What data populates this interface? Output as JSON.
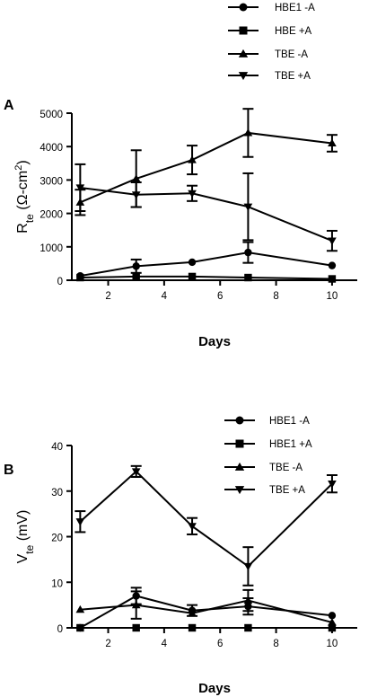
{
  "chart_data": [
    {
      "type": "line",
      "panel": "A",
      "legend_position": "top",
      "x_ticks": [
        2,
        4,
        6,
        8,
        10
      ],
      "y_ticks": [
        0,
        1000,
        2000,
        3000,
        4000,
        5000
      ],
      "xlim": [
        0.7,
        10.9
      ],
      "ylim": [
        0,
        5000
      ],
      "xlabel": "Days",
      "ylabel": {
        "main": "R",
        "sub": "te",
        "paren_open": " (",
        "omega": "Ω",
        "rest": "-cm",
        "sup": "2",
        "paren_close": ")"
      },
      "series": [
        {
          "name": "HBE1 -A",
          "marker": "circle",
          "x": [
            1,
            3,
            5,
            7,
            10
          ],
          "y": [
            130,
            420,
            540,
            830,
            440
          ],
          "err": [
            0,
            200,
            0,
            310,
            0
          ]
        },
        {
          "name": "HBE +A",
          "marker": "square",
          "x": [
            1,
            3,
            5,
            7,
            10
          ],
          "y": [
            80,
            110,
            110,
            80,
            40
          ],
          "err": [
            0,
            0,
            0,
            0,
            0
          ]
        },
        {
          "name": "TBE -A",
          "marker": "triangle-up",
          "x": [
            1,
            3,
            5,
            7,
            10
          ],
          "y": [
            2330,
            3040,
            3600,
            4410,
            4100
          ],
          "err": [
            380,
            850,
            430,
            720,
            250
          ]
        },
        {
          "name": "TBE +A",
          "marker": "triangle-down",
          "x": [
            1,
            3,
            5,
            7,
            10
          ],
          "y": [
            2770,
            2560,
            2600,
            2200,
            1180
          ],
          "err": [
            700,
            370,
            230,
            1000,
            300
          ]
        }
      ]
    },
    {
      "type": "line",
      "panel": "B",
      "legend_position": "top-right",
      "x_ticks": [
        2,
        4,
        6,
        8,
        10
      ],
      "y_ticks": [
        0,
        10,
        20,
        30,
        40
      ],
      "xlim": [
        0.7,
        10.9
      ],
      "ylim": [
        0,
        40
      ],
      "xlabel": "Days",
      "ylabel": {
        "main": "V",
        "sub": "te",
        "paren_open": " (mV)",
        "omega": "",
        "rest": "",
        "sup": "",
        "paren_close": ""
      },
      "series": [
        {
          "name": "HBE1 -A",
          "marker": "circle",
          "x": [
            1,
            3,
            5,
            7,
            10
          ],
          "y": [
            0,
            7,
            3.8,
            4.7,
            2.7
          ],
          "err": [
            0,
            1.8,
            1.2,
            1.8,
            0
          ]
        },
        {
          "name": "HBE1 +A",
          "marker": "square",
          "x": [
            1,
            3,
            5,
            7,
            10
          ],
          "y": [
            0,
            0,
            0,
            0,
            0
          ],
          "err": [
            0,
            0,
            0,
            0,
            0
          ]
        },
        {
          "name": "TBE -A",
          "marker": "triangle-up",
          "x": [
            1,
            3,
            5,
            7,
            10
          ],
          "y": [
            4,
            5,
            3.2,
            6,
            1.2
          ],
          "err": [
            0,
            3,
            0,
            2.3,
            0
          ]
        },
        {
          "name": "TBE +A",
          "marker": "triangle-down",
          "x": [
            1,
            3,
            5,
            7,
            10
          ],
          "y": [
            23.3,
            34.3,
            22.3,
            13.5,
            31.6
          ],
          "err": [
            2.3,
            1.2,
            1.8,
            4.2,
            1.9
          ]
        }
      ]
    }
  ]
}
